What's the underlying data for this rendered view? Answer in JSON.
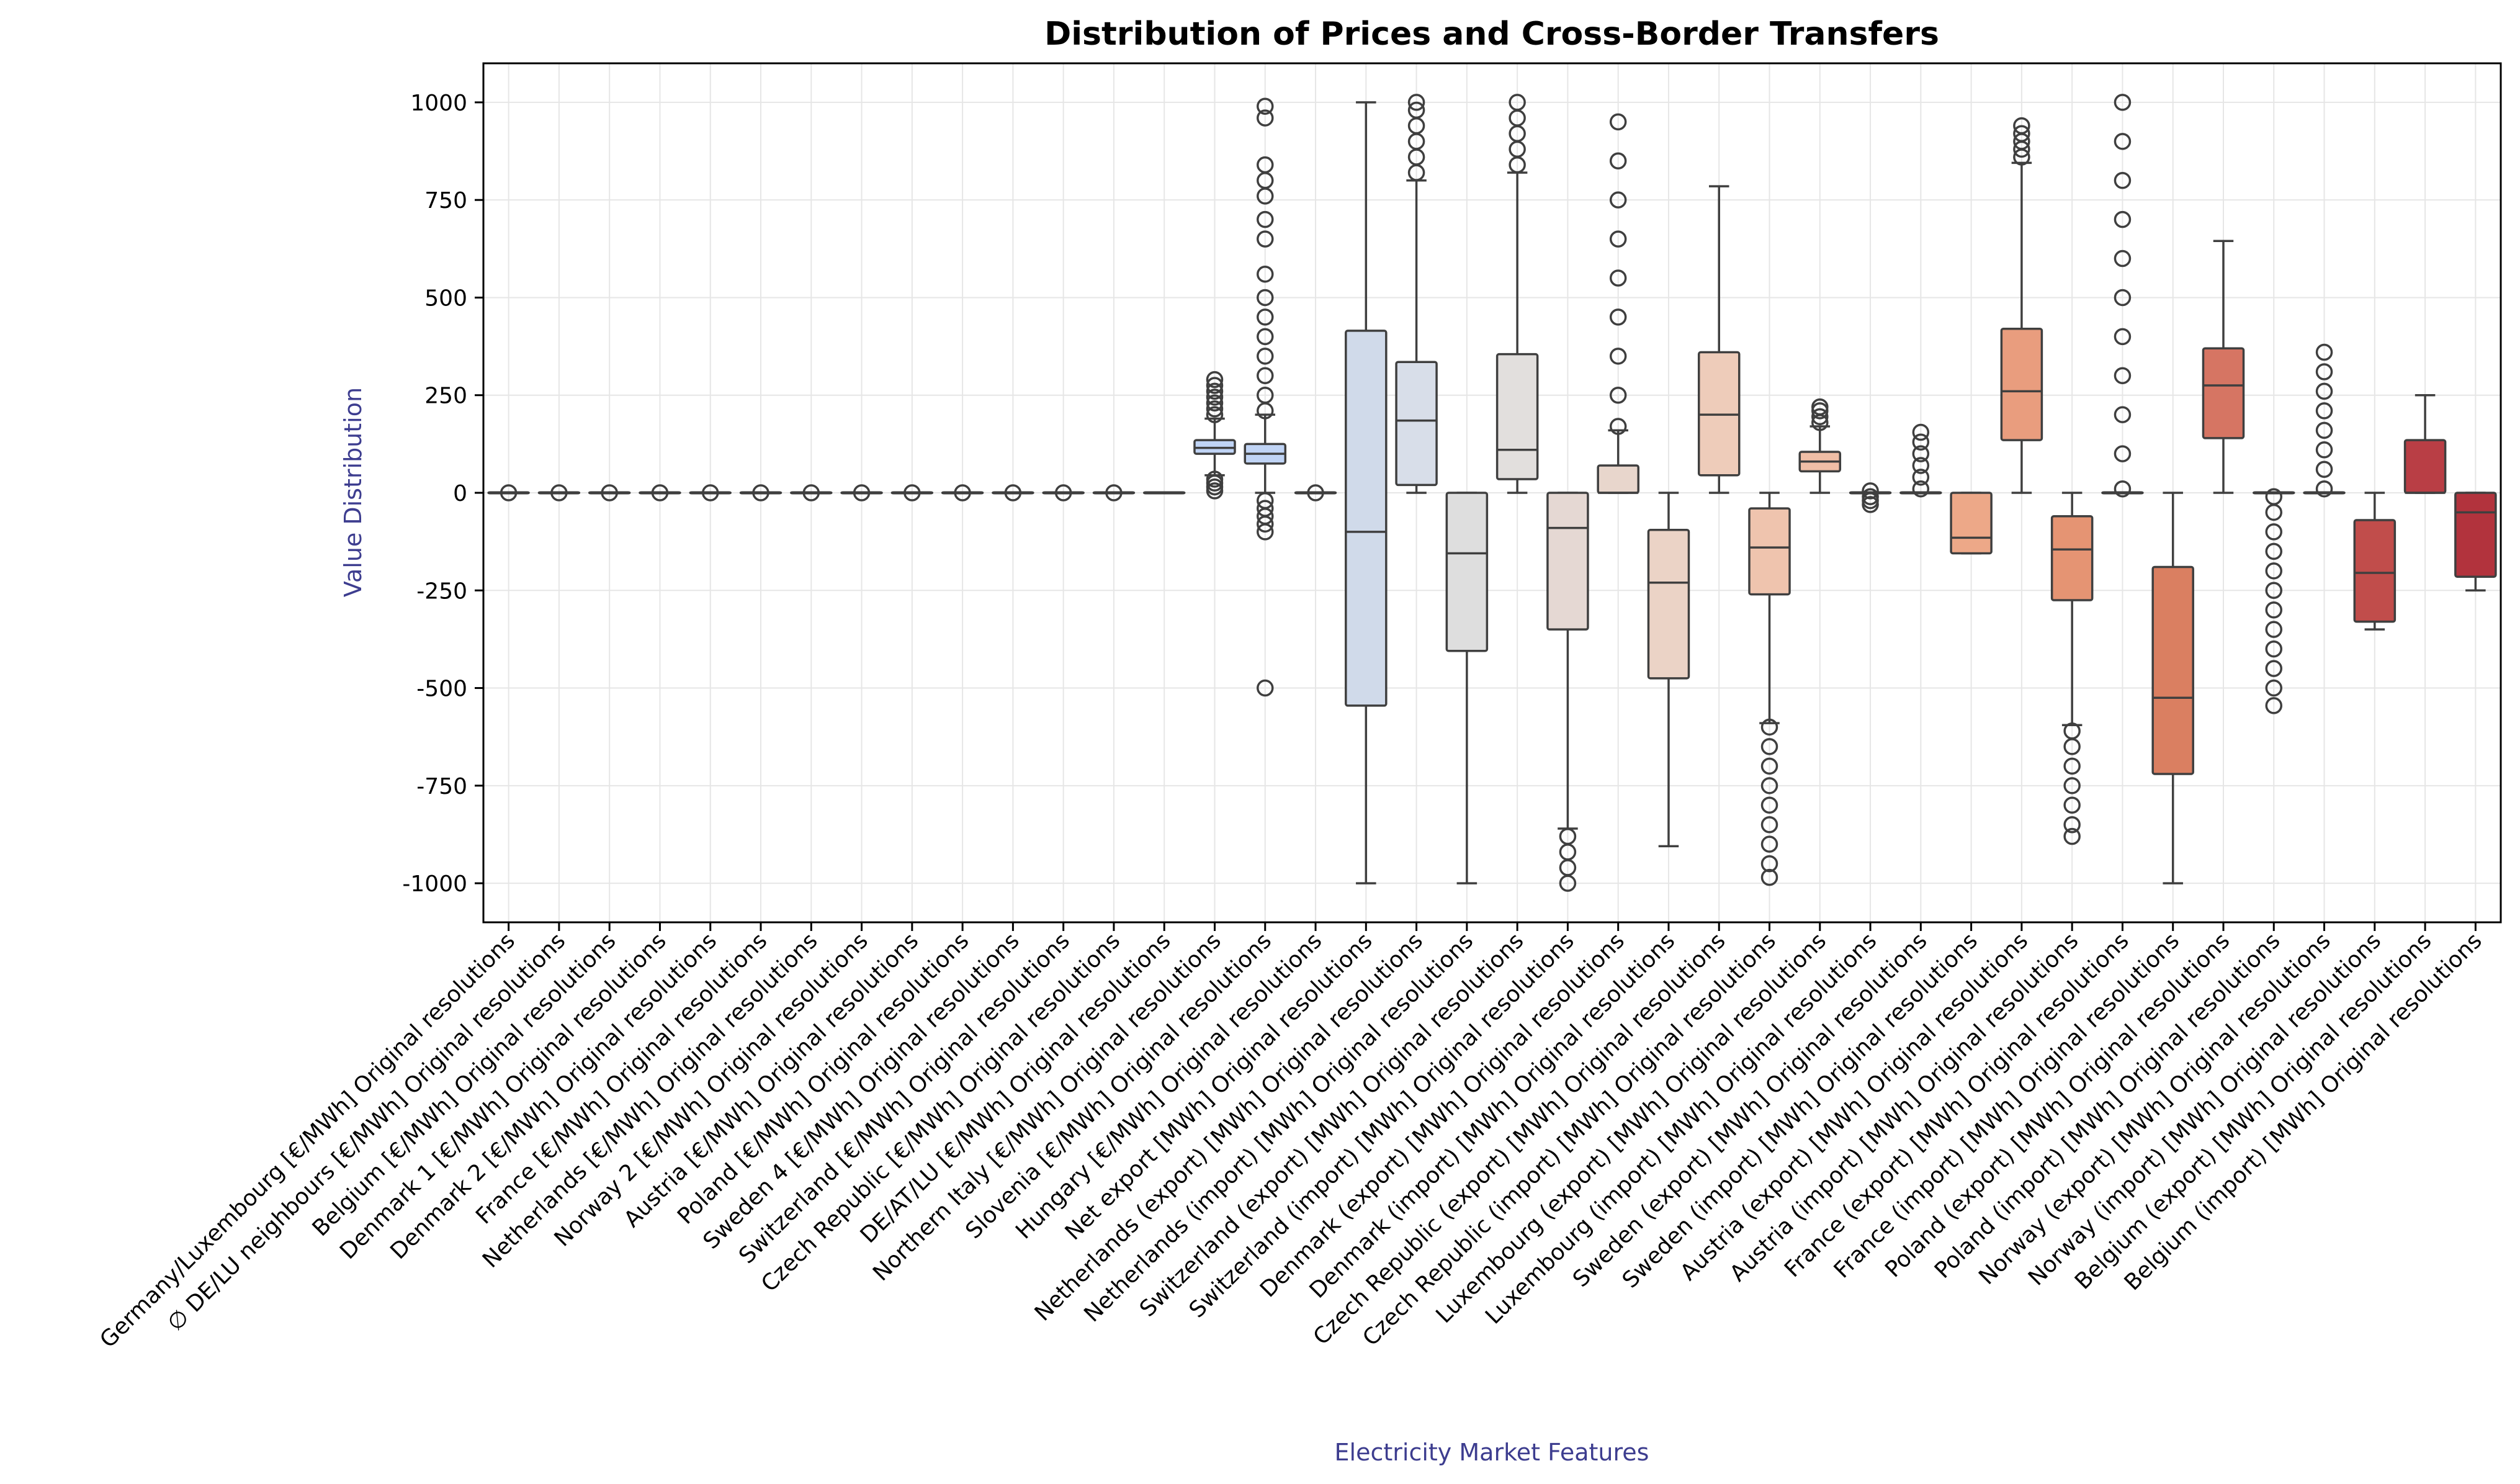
{
  "chart_data": {
    "type": "box",
    "title": "Distribution of Prices and Cross-Border Transfers",
    "xlabel": "Electricity Market Features",
    "ylabel": "Value Distribution",
    "ylim": [
      -1100,
      1100
    ],
    "yticks": [
      -1000,
      -750,
      -500,
      -250,
      0,
      250,
      500,
      750,
      1000
    ],
    "grid": true,
    "colors": {
      "title": "#000000",
      "axis_label": "#3d3d8f",
      "outline": "#3f3f3f"
    },
    "series": [
      {
        "label": "Germany/Luxembourg [€/MWh] Original resolutions",
        "color": "#c0d4f5",
        "q1": 0,
        "median": 0,
        "q3": 0,
        "whislo": 0,
        "whishi": 0,
        "fliers": [
          0
        ]
      },
      {
        "label": "∅ DE/LU neighbours [€/MWh] Original resolutions",
        "color": "#c0d4f5",
        "q1": 0,
        "median": 0,
        "q3": 0,
        "whislo": 0,
        "whishi": 0,
        "fliers": [
          0
        ]
      },
      {
        "label": "Belgium [€/MWh] Original resolutions",
        "color": "#c0d4f5",
        "q1": 0,
        "median": 0,
        "q3": 0,
        "whislo": 0,
        "whishi": 0,
        "fliers": [
          0
        ]
      },
      {
        "label": "Denmark 1 [€/MWh] Original resolutions",
        "color": "#c0d4f5",
        "q1": 0,
        "median": 0,
        "q3": 0,
        "whislo": 0,
        "whishi": 0,
        "fliers": [
          0
        ]
      },
      {
        "label": "Denmark 2 [€/MWh] Original resolutions",
        "color": "#c0d4f5",
        "q1": 0,
        "median": 0,
        "q3": 0,
        "whislo": 0,
        "whishi": 0,
        "fliers": [
          0
        ]
      },
      {
        "label": "France [€/MWh] Original resolutions",
        "color": "#c0d4f5",
        "q1": 0,
        "median": 0,
        "q3": 0,
        "whislo": 0,
        "whishi": 0,
        "fliers": [
          0
        ]
      },
      {
        "label": "Netherlands [€/MWh] Original resolutions",
        "color": "#c0d4f5",
        "q1": 0,
        "median": 0,
        "q3": 0,
        "whislo": 0,
        "whishi": 0,
        "fliers": [
          0
        ]
      },
      {
        "label": "Norway 2 [€/MWh] Original resolutions",
        "color": "#c0d4f5",
        "q1": 0,
        "median": 0,
        "q3": 0,
        "whislo": 0,
        "whishi": 0,
        "fliers": [
          0
        ]
      },
      {
        "label": "Austria [€/MWh] Original resolutions",
        "color": "#c0d4f5",
        "q1": 0,
        "median": 0,
        "q3": 0,
        "whislo": 0,
        "whishi": 0,
        "fliers": [
          0
        ]
      },
      {
        "label": "Poland [€/MWh] Original resolutions",
        "color": "#c0d4f5",
        "q1": 0,
        "median": 0,
        "q3": 0,
        "whislo": 0,
        "whishi": 0,
        "fliers": [
          0
        ]
      },
      {
        "label": "Sweden 4 [€/MWh] Original resolutions",
        "color": "#c0d4f5",
        "q1": 0,
        "median": 0,
        "q3": 0,
        "whislo": 0,
        "whishi": 0,
        "fliers": [
          0
        ]
      },
      {
        "label": "Switzerland [€/MWh] Original resolutions",
        "color": "#c0d4f5",
        "q1": 0,
        "median": 0,
        "q3": 0,
        "whislo": 0,
        "whishi": 0,
        "fliers": [
          0
        ]
      },
      {
        "label": "Czech Republic [€/MWh] Original resolutions",
        "color": "#c0d4f5",
        "q1": 0,
        "median": 0,
        "q3": 0,
        "whislo": 0,
        "whishi": 0,
        "fliers": [
          0
        ]
      },
      {
        "label": "DE/AT/LU [€/MWh] Original resolutions",
        "color": "#c0d4f5",
        "q1": 0,
        "median": 0,
        "q3": 0,
        "whislo": 0,
        "whishi": 0,
        "fliers": []
      },
      {
        "label": "Northern Italy [€/MWh] Original resolutions",
        "color": "#c0d4f5",
        "q1": 100,
        "median": 115,
        "q3": 135,
        "whislo": 45,
        "whishi": 190,
        "fliers": [
          5,
          15,
          25,
          35,
          200,
          215,
          230,
          245,
          260,
          275,
          290
        ]
      },
      {
        "label": "Slovenia [€/MWh] Original resolutions",
        "color": "#c0d4f5",
        "q1": 75,
        "median": 100,
        "q3": 125,
        "whislo": 0,
        "whishi": 200,
        "fliers": [
          -500,
          -100,
          -80,
          -60,
          -40,
          -20,
          210,
          250,
          300,
          350,
          400,
          450,
          500,
          560,
          650,
          700,
          760,
          800,
          840,
          960,
          990
        ]
      },
      {
        "label": "Hungary [€/MWh] Original resolutions",
        "color": "#c0d4f5",
        "q1": 0,
        "median": 0,
        "q3": 0,
        "whislo": 0,
        "whishi": 0,
        "fliers": [
          0
        ]
      },
      {
        "label": "Net export [MWh] Original resolutions",
        "color": "#d0daea",
        "q1": -545,
        "median": -100,
        "q3": 415,
        "whislo": -1000,
        "whishi": 1000,
        "fliers": []
      },
      {
        "label": "Netherlands (export) [MWh] Original resolutions",
        "color": "#d8dee9",
        "q1": 20,
        "median": 185,
        "q3": 335,
        "whislo": 0,
        "whishi": 800,
        "fliers": [
          820,
          860,
          900,
          940,
          980,
          1000
        ]
      },
      {
        "label": "Netherlands (import) [MWh] Original resolutions",
        "color": "#dedede",
        "q1": -405,
        "median": -155,
        "q3": 0,
        "whislo": -1000,
        "whishi": 0,
        "fliers": []
      },
      {
        "label": "Switzerland (export) [MWh] Original resolutions",
        "color": "#e2dfdd",
        "q1": 35,
        "median": 110,
        "q3": 355,
        "whislo": 0,
        "whishi": 820,
        "fliers": [
          840,
          880,
          920,
          960,
          1000
        ]
      },
      {
        "label": "Switzerland (import) [MWh] Original resolutions",
        "color": "#e5d8d3",
        "q1": -350,
        "median": -90,
        "q3": 0,
        "whislo": -860,
        "whishi": 0,
        "fliers": [
          -880,
          -920,
          -960,
          -1000
        ]
      },
      {
        "label": "Denmark (export) [MWh] Original resolutions",
        "color": "#e8d6cc",
        "q1": 0,
        "median": 0,
        "q3": 70,
        "whislo": 0,
        "whishi": 160,
        "fliers": [
          170,
          250,
          350,
          450,
          550,
          650,
          750,
          850,
          950
        ]
      },
      {
        "label": "Denmark (import) [MWh] Original resolutions",
        "color": "#ebd3c6",
        "q1": -475,
        "median": -230,
        "q3": -95,
        "whislo": -905,
        "whishi": 0,
        "fliers": []
      },
      {
        "label": "Czech Republic (export) [MWh] Original resolutions",
        "color": "#eeccba",
        "q1": 45,
        "median": 200,
        "q3": 360,
        "whislo": 0,
        "whishi": 785,
        "fliers": []
      },
      {
        "label": "Czech Republic (import) [MWh] Original resolutions",
        "color": "#efc4ae",
        "q1": -260,
        "median": -140,
        "q3": -40,
        "whislo": -590,
        "whishi": 0,
        "fliers": [
          -600,
          -650,
          -700,
          -750,
          -800,
          -850,
          -900,
          -950,
          -985
        ]
      },
      {
        "label": "Luxembourg (export) [MWh] Original resolutions",
        "color": "#f0bea6",
        "q1": 55,
        "median": 80,
        "q3": 105,
        "whislo": 0,
        "whishi": 170,
        "fliers": [
          180,
          195,
          210,
          220
        ]
      },
      {
        "label": "Luxembourg (import) [MWh] Original resolutions",
        "color": "#f0b79d",
        "q1": 0,
        "median": 0,
        "q3": 0,
        "whislo": 0,
        "whishi": 0,
        "fliers": [
          -30,
          -20,
          -10,
          5
        ]
      },
      {
        "label": "Sweden (export) [MWh] Original resolutions",
        "color": "#efb093",
        "q1": 0,
        "median": 0,
        "q3": 0,
        "whislo": 0,
        "whishi": 0,
        "fliers": [
          10,
          40,
          70,
          100,
          130,
          155
        ]
      },
      {
        "label": "Sweden (import) [MWh] Original resolutions",
        "color": "#eda888",
        "q1": -155,
        "median": -115,
        "q3": 0,
        "whislo": -155,
        "whishi": 0,
        "fliers": []
      },
      {
        "label": "Austria (export) [MWh] Original resolutions",
        "color": "#e99d7e",
        "q1": 135,
        "median": 260,
        "q3": 420,
        "whislo": 0,
        "whishi": 845,
        "fliers": [
          860,
          880,
          900,
          920,
          940
        ]
      },
      {
        "label": "Austria (import) [MWh] Original resolutions",
        "color": "#e59473",
        "q1": -275,
        "median": -145,
        "q3": -60,
        "whislo": -595,
        "whishi": 0,
        "fliers": [
          -610,
          -650,
          -700,
          -750,
          -800,
          -850,
          -880
        ]
      },
      {
        "label": "France (export) [MWh] Original resolutions",
        "color": "#e08a69",
        "q1": 0,
        "median": 0,
        "q3": 0,
        "whislo": 0,
        "whishi": 0,
        "fliers": [
          10,
          100,
          200,
          300,
          400,
          500,
          600,
          700,
          800,
          900,
          1000
        ]
      },
      {
        "label": "France (import) [MWh] Original resolutions",
        "color": "#da7f61",
        "q1": -720,
        "median": -525,
        "q3": -190,
        "whislo": -1000,
        "whishi": 0,
        "fliers": []
      },
      {
        "label": "Poland (export) [MWh] Original resolutions",
        "color": "#d67563",
        "q1": 140,
        "median": 275,
        "q3": 370,
        "whislo": 0,
        "whishi": 645,
        "fliers": []
      },
      {
        "label": "Poland (import) [MWh] Original resolutions",
        "color": "#cf6a5c",
        "q1": 0,
        "median": 0,
        "q3": 0,
        "whislo": 0,
        "whishi": 0,
        "fliers": [
          -545,
          -500,
          -450,
          -400,
          -350,
          -300,
          -250,
          -200,
          -150,
          -100,
          -50,
          -10
        ]
      },
      {
        "label": "Norway (export) [MWh] Original resolutions",
        "color": "#ca5e56",
        "q1": 0,
        "median": 0,
        "q3": 0,
        "whislo": 0,
        "whishi": 0,
        "fliers": [
          10,
          60,
          110,
          160,
          210,
          260,
          310,
          360
        ]
      },
      {
        "label": "Norway (import) [MWh] Original resolutions",
        "color": "#c14d4b",
        "q1": -330,
        "median": -205,
        "q3": -70,
        "whislo": -350,
        "whishi": 0,
        "fliers": []
      },
      {
        "label": "Belgium (export) [MWh] Original resolutions",
        "color": "#b93e45",
        "q1": 0,
        "median": 0,
        "q3": 135,
        "whislo": 0,
        "whishi": 250,
        "fliers": []
      },
      {
        "label": "Belgium (import) [MWh] Original resolutions",
        "color": "#b2333d",
        "q1": -215,
        "median": -50,
        "q3": 0,
        "whislo": -250,
        "whishi": 0,
        "fliers": []
      }
    ]
  }
}
